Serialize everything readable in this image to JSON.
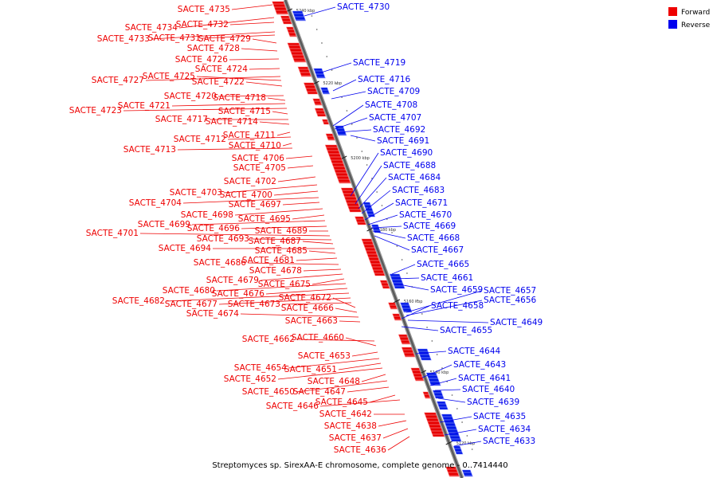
{
  "caption": "Streptomyces sp. SirexAA-E chromosome, complete genome - 0..7414440",
  "legend": [
    {
      "label": "Forward",
      "color": "#ee0000"
    },
    {
      "label": "Reverse",
      "color": "#0000ee"
    }
  ],
  "ticks": [
    "5240 kbp",
    "5220 kbp",
    "5200 kbp",
    "5180 kbp",
    "5160 kbp",
    "5140 kbp",
    "5120 kbp"
  ],
  "forward_genes": [
    "SACTE_4735",
    "SACTE_4734",
    "SACTE_4732",
    "SACTE_4733",
    "SACTE_4731",
    "SACTE_4729",
    "SACTE_4728",
    "SACTE_4726",
    "SACTE_4724",
    "SACTE_4727",
    "SACTE_4725",
    "SACTE_4722",
    "SACTE_4720",
    "SACTE_4718",
    "SACTE_4721",
    "SACTE_4723",
    "SACTE_4715",
    "SACTE_4717",
    "SACTE_4714",
    "SACTE_4711",
    "SACTE_4712",
    "SACTE_4710",
    "SACTE_4713",
    "SACTE_4706",
    "SACTE_4705",
    "SACTE_4702",
    "SACTE_4703",
    "SACTE_4700",
    "SACTE_4704",
    "SACTE_4697",
    "SACTE_4698",
    "SACTE_4695",
    "SACTE_4699",
    "SACTE_4696",
    "SACTE_4689",
    "SACTE_4701",
    "SACTE_4693",
    "SACTE_4687",
    "SACTE_4694",
    "SACTE_4685",
    "SACTE_4681",
    "SACTE_4686",
    "SACTE_4678",
    "SACTE_4679",
    "SACTE_4675",
    "SACTE_4680",
    "SACTE_4676",
    "SACTE_4682",
    "SACTE_4677",
    "SACTE_4673",
    "SACTE_4672",
    "SACTE_4666",
    "SACTE_4674",
    "SACTE_4663",
    "SACTE_4662",
    "SACTE_4660",
    "SACTE_4653",
    "SACTE_4654",
    "SACTE_4651",
    "SACTE_4652",
    "SACTE_4648",
    "SACTE_4650",
    "SACTE_4647",
    "SACTE_4645",
    "SACTE_4646",
    "SACTE_4642",
    "SACTE_4638",
    "SACTE_4637",
    "SACTE_4636"
  ],
  "reverse_genes": [
    "SACTE_4730",
    "SACTE_4719",
    "SACTE_4716",
    "SACTE_4709",
    "SACTE_4708",
    "SACTE_4707",
    "SACTE_4692",
    "SACTE_4691",
    "SACTE_4690",
    "SACTE_4688",
    "SACTE_4684",
    "SACTE_4683",
    "SACTE_4671",
    "SACTE_4670",
    "SACTE_4669",
    "SACTE_4668",
    "SACTE_4667",
    "SACTE_4665",
    "SACTE_4661",
    "SACTE_4659",
    "SACTE_4657",
    "SACTE_4656",
    "SACTE_4658",
    "SACTE_4649",
    "SACTE_4655",
    "SACTE_4644",
    "SACTE_4643",
    "SACTE_4641",
    "SACTE_4640",
    "SACTE_4639",
    "SACTE_4635",
    "SACTE_4634",
    "SACTE_4633"
  ]
}
